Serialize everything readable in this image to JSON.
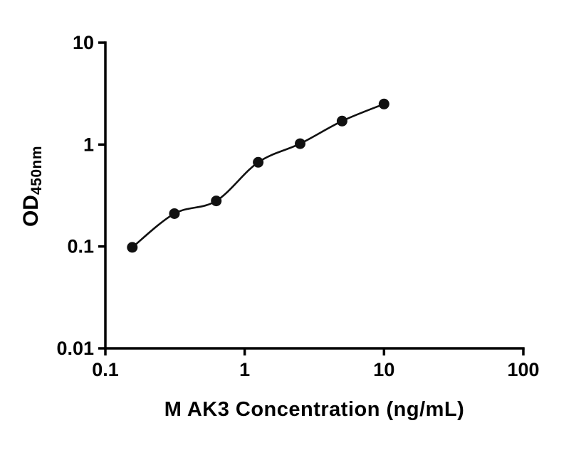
{
  "chart_data": {
    "type": "scatter",
    "x": [
      0.156,
      0.313,
      0.625,
      1.25,
      2.5,
      5,
      10
    ],
    "y": [
      0.098,
      0.21,
      0.28,
      0.67,
      1.02,
      1.7,
      2.5
    ],
    "line_through_points": true,
    "xlabel": "M AK3 Concentration (ng/mL)",
    "ylabel_main": "OD",
    "ylabel_sub": "450nm",
    "x_scale": "log",
    "y_scale": "log",
    "xlim": [
      0.1,
      100
    ],
    "ylim": [
      0.01,
      10
    ],
    "x_ticks": [
      0.1,
      1,
      10,
      100
    ],
    "x_tick_labels": [
      "0.1",
      "1",
      "10",
      "100"
    ],
    "y_ticks": [
      0.01,
      0.1,
      1,
      10
    ],
    "y_tick_labels": [
      "0.01",
      "0.1",
      "1",
      "10"
    ],
    "grid": "off",
    "legend": "none",
    "colors": {
      "point": "#111111",
      "line": "#111111",
      "axis": "#000000",
      "text": "#000000",
      "background": "#ffffff"
    }
  }
}
